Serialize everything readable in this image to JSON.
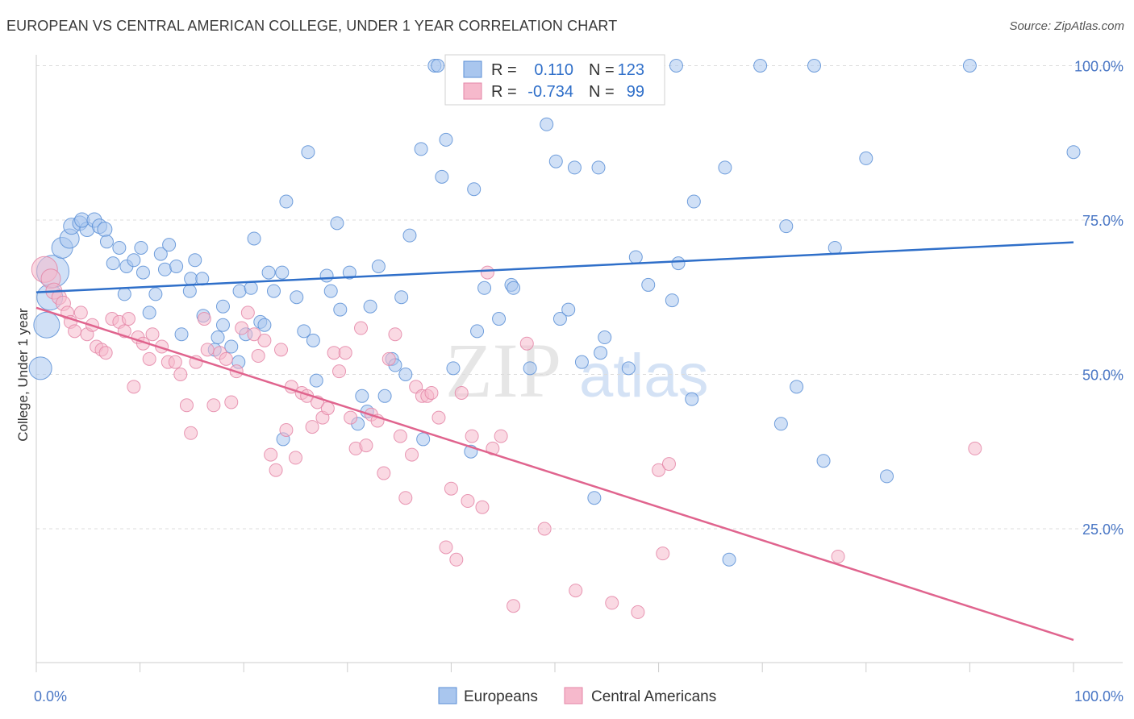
{
  "header": {
    "title": "EUROPEAN VS CENTRAL AMERICAN COLLEGE, UNDER 1 YEAR CORRELATION CHART",
    "source": "Source: ZipAtlas.com"
  },
  "watermark": {
    "zip": "ZIP",
    "atlas": "atlas"
  },
  "legend_stats": [
    {
      "r_label": "R =",
      "r_value": "0.110",
      "n_label": "N =",
      "n_value": "123"
    },
    {
      "r_label": "R =",
      "r_value": "-0.734",
      "n_label": "N =",
      "n_value": "99"
    }
  ],
  "colors": {
    "europeans_fill": "#a9c6ee",
    "europeans_stroke": "#5b8fd6",
    "europeans_line": "#2f6fc9",
    "central_fill": "#f6b9cc",
    "central_stroke": "#e486a7",
    "central_line": "#e0648e",
    "tick": "#4a77c5",
    "grid": "#dcdcdc"
  },
  "chart_data": {
    "type": "scatter",
    "xlabel": "",
    "ylabel": "College, Under 1 year",
    "xlim": [
      0,
      100
    ],
    "ylim": [
      0,
      105
    ],
    "x_tick_labels": [
      "0.0%",
      "100.0%"
    ],
    "y_ticks": [
      25,
      50,
      75,
      100
    ],
    "y_tick_labels": [
      "25.0%",
      "50.0%",
      "75.0%",
      "100.0%"
    ],
    "grid": true,
    "legend": [
      "Europeans",
      "Central Americans"
    ],
    "series": [
      {
        "name": "Europeans",
        "trend": {
          "x": [
            0,
            100
          ],
          "y": [
            63.3,
            71.4
          ]
        },
        "points": [
          [
            0.4,
            51.0,
            14
          ],
          [
            1.0,
            58.0,
            16
          ],
          [
            1.3,
            62.5,
            16
          ],
          [
            1.6,
            66.7,
            20
          ],
          [
            2.5,
            70.5,
            13
          ],
          [
            3.2,
            72.0,
            12
          ],
          [
            3.4,
            74.0,
            10
          ],
          [
            4.2,
            74.5,
            9
          ],
          [
            4.9,
            73.5,
            9
          ],
          [
            4.4,
            75.0,
            9
          ],
          [
            5.6,
            75.0,
            9
          ],
          [
            6.1,
            74.0,
            9
          ],
          [
            6.6,
            73.5,
            9
          ],
          [
            6.8,
            71.5,
            8
          ],
          [
            7.4,
            68.0,
            8
          ],
          [
            8.0,
            70.5,
            8
          ],
          [
            8.5,
            63.0,
            8
          ],
          [
            8.7,
            67.5,
            8
          ],
          [
            9.4,
            68.5,
            8
          ],
          [
            10.1,
            70.5,
            8
          ],
          [
            10.3,
            66.5,
            8
          ],
          [
            10.9,
            60.0,
            8
          ],
          [
            11.5,
            63.0,
            8
          ],
          [
            12.0,
            69.5,
            8
          ],
          [
            12.4,
            67.0,
            8
          ],
          [
            12.8,
            71.0,
            8
          ],
          [
            13.5,
            67.5,
            8
          ],
          [
            14.0,
            56.5,
            8
          ],
          [
            14.8,
            63.5,
            8
          ],
          [
            14.9,
            65.5,
            8
          ],
          [
            15.3,
            68.5,
            8
          ],
          [
            16.0,
            65.5,
            8
          ],
          [
            16.1,
            59.5,
            8
          ],
          [
            17.2,
            54.0,
            8
          ],
          [
            17.5,
            56.0,
            8
          ],
          [
            18.0,
            58.0,
            8
          ],
          [
            18.0,
            61.0,
            8
          ],
          [
            18.8,
            54.5,
            8
          ],
          [
            19.5,
            52.0,
            8
          ],
          [
            19.6,
            63.5,
            8
          ],
          [
            20.2,
            56.5,
            8
          ],
          [
            20.7,
            64.0,
            8
          ],
          [
            21.0,
            72.0,
            8
          ],
          [
            21.6,
            58.5,
            8
          ],
          [
            22.0,
            58.0,
            8
          ],
          [
            22.4,
            66.5,
            8
          ],
          [
            22.9,
            63.5,
            8
          ],
          [
            23.7,
            66.5,
            8
          ],
          [
            23.8,
            39.5,
            8
          ],
          [
            24.1,
            78.0,
            8
          ],
          [
            25.1,
            62.5,
            8
          ],
          [
            25.8,
            57.0,
            8
          ],
          [
            26.2,
            86.0,
            8
          ],
          [
            26.7,
            55.5,
            8
          ],
          [
            27.0,
            49.0,
            8
          ],
          [
            28.0,
            66.0,
            8
          ],
          [
            28.4,
            63.5,
            8
          ],
          [
            29.0,
            74.5,
            8
          ],
          [
            29.3,
            60.5,
            8
          ],
          [
            30.2,
            66.5,
            8
          ],
          [
            31.0,
            42.0,
            8
          ],
          [
            31.4,
            46.5,
            8
          ],
          [
            31.9,
            44.0,
            8
          ],
          [
            32.2,
            61.0,
            8
          ],
          [
            33.0,
            67.5,
            8
          ],
          [
            33.6,
            46.5,
            8
          ],
          [
            34.3,
            52.5,
            8
          ],
          [
            34.6,
            51.5,
            8
          ],
          [
            35.2,
            62.5,
            8
          ],
          [
            35.6,
            50.0,
            8
          ],
          [
            36.0,
            72.5,
            8
          ],
          [
            37.1,
            86.5,
            8
          ],
          [
            37.3,
            39.5,
            8
          ],
          [
            38.4,
            100.0,
            8
          ],
          [
            38.7,
            100.0,
            8
          ],
          [
            39.1,
            82.0,
            8
          ],
          [
            39.5,
            88.0,
            8
          ],
          [
            40.2,
            51.0,
            8
          ],
          [
            41.9,
            37.5,
            8
          ],
          [
            42.2,
            80.0,
            8
          ],
          [
            42.5,
            57.0,
            8
          ],
          [
            43.2,
            64.0,
            8
          ],
          [
            44.6,
            59.0,
            8
          ],
          [
            45.8,
            64.5,
            8
          ],
          [
            46.0,
            64.0,
            8
          ],
          [
            47.6,
            51.0,
            8
          ],
          [
            47.8,
            100.0,
            8
          ],
          [
            49.2,
            90.5,
            8
          ],
          [
            50.1,
            84.5,
            8
          ],
          [
            50.5,
            59.0,
            8
          ],
          [
            51.3,
            60.5,
            8
          ],
          [
            51.9,
            83.5,
            8
          ],
          [
            52.6,
            52.0,
            8
          ],
          [
            53.8,
            30.0,
            8
          ],
          [
            54.2,
            83.5,
            8
          ],
          [
            54.4,
            53.5,
            8
          ],
          [
            54.8,
            56.0,
            8
          ],
          [
            57.1,
            51.0,
            8
          ],
          [
            57.8,
            69.0,
            8
          ],
          [
            59.0,
            64.5,
            8
          ],
          [
            61.3,
            62.0,
            8
          ],
          [
            61.7,
            100.0,
            8
          ],
          [
            61.9,
            68.0,
            8
          ],
          [
            63.2,
            46.0,
            8
          ],
          [
            63.4,
            78.0,
            8
          ],
          [
            66.4,
            83.5,
            8
          ],
          [
            66.8,
            20.0,
            8
          ],
          [
            69.8,
            100.0,
            8
          ],
          [
            71.8,
            42.0,
            8
          ],
          [
            72.3,
            74.0,
            8
          ],
          [
            73.3,
            48.0,
            8
          ],
          [
            75.0,
            100.0,
            8
          ],
          [
            75.9,
            36.0,
            8
          ],
          [
            77.0,
            70.5,
            8
          ],
          [
            80.0,
            85.0,
            8
          ],
          [
            82.0,
            33.5,
            8
          ],
          [
            90.0,
            100.0,
            8
          ],
          [
            100.0,
            86.0,
            8
          ]
        ]
      },
      {
        "name": "Central Americans",
        "trend": {
          "x": [
            0,
            100
          ],
          "y": [
            60.8,
            7.0
          ]
        },
        "points": [
          [
            0.8,
            67.0,
            16
          ],
          [
            1.4,
            65.5,
            12
          ],
          [
            1.7,
            63.5,
            10
          ],
          [
            2.2,
            62.5,
            9
          ],
          [
            2.6,
            61.5,
            9
          ],
          [
            3.0,
            60.0,
            8
          ],
          [
            3.3,
            58.5,
            8
          ],
          [
            3.7,
            57.0,
            8
          ],
          [
            4.3,
            60.0,
            8
          ],
          [
            4.9,
            56.5,
            8
          ],
          [
            5.4,
            58.0,
            8
          ],
          [
            5.8,
            54.5,
            8
          ],
          [
            6.3,
            54.0,
            8
          ],
          [
            6.7,
            53.5,
            8
          ],
          [
            7.3,
            59.0,
            8
          ],
          [
            8.0,
            58.5,
            8
          ],
          [
            8.5,
            57.0,
            8
          ],
          [
            8.9,
            59.0,
            8
          ],
          [
            9.4,
            48.0,
            8
          ],
          [
            9.8,
            56.0,
            8
          ],
          [
            10.3,
            55.0,
            8
          ],
          [
            10.9,
            52.5,
            8
          ],
          [
            11.2,
            56.5,
            8
          ],
          [
            12.1,
            54.5,
            8
          ],
          [
            12.7,
            52.0,
            8
          ],
          [
            13.4,
            52.0,
            8
          ],
          [
            13.9,
            50.0,
            8
          ],
          [
            14.5,
            45.0,
            8
          ],
          [
            14.9,
            40.5,
            8
          ],
          [
            15.4,
            52.0,
            8
          ],
          [
            16.2,
            59.0,
            8
          ],
          [
            16.5,
            54.0,
            8
          ],
          [
            17.1,
            45.0,
            8
          ],
          [
            17.7,
            53.5,
            8
          ],
          [
            18.3,
            52.5,
            8
          ],
          [
            18.8,
            45.5,
            8
          ],
          [
            19.3,
            50.5,
            8
          ],
          [
            19.8,
            57.5,
            8
          ],
          [
            20.4,
            60.0,
            8
          ],
          [
            21.0,
            56.5,
            8
          ],
          [
            21.4,
            53.0,
            8
          ],
          [
            22.0,
            55.5,
            8
          ],
          [
            22.6,
            37.0,
            8
          ],
          [
            23.1,
            34.5,
            8
          ],
          [
            23.6,
            54.0,
            8
          ],
          [
            24.1,
            41.0,
            8
          ],
          [
            24.6,
            48.0,
            8
          ],
          [
            25.0,
            36.5,
            8
          ],
          [
            25.6,
            47.0,
            8
          ],
          [
            26.1,
            46.5,
            8
          ],
          [
            26.6,
            41.5,
            8
          ],
          [
            27.1,
            45.5,
            8
          ],
          [
            27.6,
            43.0,
            8
          ],
          [
            28.1,
            44.5,
            8
          ],
          [
            28.7,
            53.5,
            8
          ],
          [
            29.2,
            50.5,
            8
          ],
          [
            29.8,
            53.5,
            8
          ],
          [
            30.3,
            43.0,
            8
          ],
          [
            30.8,
            38.0,
            8
          ],
          [
            31.3,
            57.5,
            8
          ],
          [
            31.8,
            38.5,
            8
          ],
          [
            32.3,
            43.5,
            8
          ],
          [
            32.9,
            42.5,
            8
          ],
          [
            33.5,
            34.0,
            8
          ],
          [
            34.0,
            52.5,
            8
          ],
          [
            34.6,
            56.5,
            8
          ],
          [
            35.1,
            40.0,
            8
          ],
          [
            35.6,
            30.0,
            8
          ],
          [
            36.2,
            37.0,
            8
          ],
          [
            36.6,
            48.0,
            8
          ],
          [
            37.2,
            46.5,
            8
          ],
          [
            37.7,
            46.5,
            8
          ],
          [
            38.1,
            47.0,
            8
          ],
          [
            38.8,
            43.0,
            8
          ],
          [
            39.5,
            22.0,
            8
          ],
          [
            40.0,
            31.5,
            8
          ],
          [
            40.5,
            20.0,
            8
          ],
          [
            41.0,
            47.0,
            8
          ],
          [
            41.6,
            29.5,
            8
          ],
          [
            42.0,
            40.0,
            8
          ],
          [
            43.0,
            28.5,
            8
          ],
          [
            43.5,
            66.5,
            8
          ],
          [
            44.0,
            38.0,
            8
          ],
          [
            44.8,
            40.0,
            8
          ],
          [
            46.0,
            12.5,
            8
          ],
          [
            47.3,
            55.0,
            8
          ],
          [
            49.0,
            25.0,
            8
          ],
          [
            52.0,
            15.0,
            8
          ],
          [
            55.5,
            13.0,
            8
          ],
          [
            58.0,
            11.5,
            8
          ],
          [
            60.0,
            34.5,
            8
          ],
          [
            60.4,
            21.0,
            8
          ],
          [
            61.0,
            35.5,
            8
          ],
          [
            77.3,
            20.5,
            8
          ],
          [
            90.5,
            38.0,
            8
          ]
        ]
      }
    ]
  }
}
